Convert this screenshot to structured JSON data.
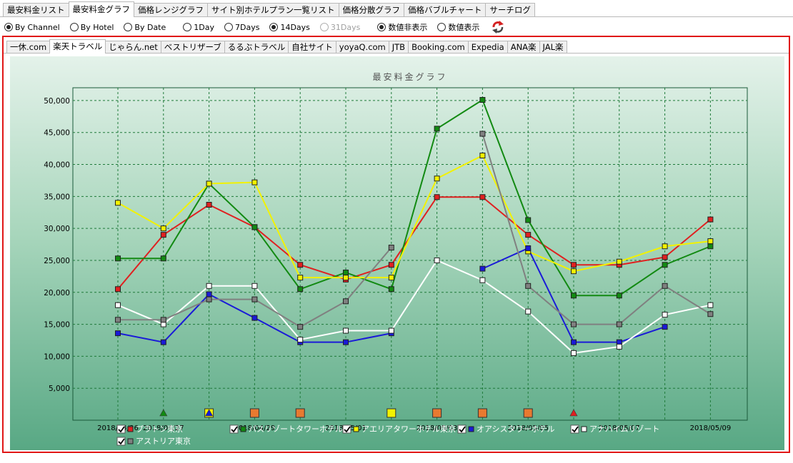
{
  "main_tabs": [
    {
      "label": "最安料金リスト",
      "active": false
    },
    {
      "label": "最安料金グラフ",
      "active": true
    },
    {
      "label": "価格レンジグラフ",
      "active": false
    },
    {
      "label": "サイト別ホテルプラン一覧リスト",
      "active": false
    },
    {
      "label": "価格分散グラフ",
      "active": false
    },
    {
      "label": "価格バブルチャート",
      "active": false
    },
    {
      "label": "サーチログ",
      "active": false
    }
  ],
  "options": {
    "group_by": [
      {
        "label": "By Channel",
        "checked": true
      },
      {
        "label": "By Hotel",
        "checked": false
      },
      {
        "label": "By Date",
        "checked": false
      }
    ],
    "period": [
      {
        "label": "1Day",
        "checked": false,
        "disabled": false
      },
      {
        "label": "7Days",
        "checked": false,
        "disabled": false
      },
      {
        "label": "14Days",
        "checked": true,
        "disabled": false
      },
      {
        "label": "31Days",
        "checked": false,
        "disabled": true
      }
    ],
    "value_display": [
      {
        "label": "数値非表示",
        "checked": true
      },
      {
        "label": "数値表示",
        "checked": false
      }
    ],
    "refresh_icon": "refresh-icon"
  },
  "channel_tabs": [
    {
      "label": "一休.com",
      "active": false
    },
    {
      "label": "楽天トラベル",
      "active": true
    },
    {
      "label": "じゃらん.net",
      "active": false
    },
    {
      "label": "ベストリザーブ",
      "active": false
    },
    {
      "label": "るるぶトラベル",
      "active": false
    },
    {
      "label": "自社サイト",
      "active": false
    },
    {
      "label": "yoyaQ.com",
      "active": false
    },
    {
      "label": "JTB",
      "active": false
    },
    {
      "label": "Booking.com",
      "active": false
    },
    {
      "label": "Expedia",
      "active": false
    },
    {
      "label": "ANA楽",
      "active": false
    },
    {
      "label": "JAL楽",
      "active": false
    }
  ],
  "chart_data": {
    "type": "line",
    "title": "最安料金グラフ",
    "xlabel": "",
    "ylabel": "",
    "ylim": [
      0,
      52000
    ],
    "yticks": [
      5000,
      10000,
      15000,
      20000,
      25000,
      30000,
      35000,
      40000,
      45000,
      50000
    ],
    "ytick_labels": [
      "5,000",
      "10,000",
      "15,000",
      "20,000",
      "25,000",
      "30,000",
      "35,000",
      "40,000",
      "45,000",
      "50,000"
    ],
    "x": [
      "2018/04/26",
      "2018/04/27",
      "2018/04/28",
      "2018/04/29",
      "2018/04/30",
      "2018/05/01",
      "2018/05/02",
      "2018/05/03",
      "2018/05/04",
      "2018/05/05",
      "2018/05/06",
      "2018/05/07",
      "2018/05/08",
      "2018/05/09"
    ],
    "xtick_labels": [
      "2018/04/26",
      "2018/04/27",
      "2018/04/29",
      "2018/05/01",
      "2018/05/03",
      "2018/05/05",
      "2018/05/07",
      "2018/05/09"
    ],
    "grid": true,
    "legend_position": "bottom",
    "series": [
      {
        "name": "プラトン東京",
        "color": "#e02020",
        "checked": true,
        "values": [
          20500,
          29000,
          33700,
          30200,
          24300,
          22000,
          24300,
          34900,
          34900,
          29000,
          24300,
          24300,
          25500,
          31400
        ]
      },
      {
        "name": "パスリゾートタワーホテル",
        "color": "#128a12",
        "checked": true,
        "values": [
          25300,
          25300,
          37000,
          30200,
          20500,
          23100,
          20500,
          45600,
          50100,
          31300,
          19500,
          19500,
          24300,
          27200
        ]
      },
      {
        "name": "アエリアタワーホテル東京",
        "color": "#f2f200",
        "checked": true,
        "values": [
          34000,
          30000,
          37000,
          37200,
          22300,
          22300,
          22300,
          37800,
          41400,
          26400,
          23300,
          24800,
          27200,
          28000
        ]
      },
      {
        "name": "オアシスタワーホテル",
        "color": "#1a1ad8",
        "checked": true,
        "values": [
          13600,
          12200,
          19700,
          16000,
          12200,
          12200,
          13600,
          null,
          23700,
          26900,
          12200,
          12200,
          14600,
          null
        ]
      },
      {
        "name": "アナハイムリゾート",
        "color": "#ffffff",
        "checked": true,
        "values": [
          18000,
          15000,
          21000,
          21000,
          12600,
          14000,
          14000,
          25000,
          21900,
          17000,
          10500,
          11500,
          16500,
          18000
        ]
      },
      {
        "name": "アストリア東京",
        "color": "#808080",
        "checked": true,
        "values": [
          15700,
          15700,
          18900,
          18900,
          14600,
          18600,
          27000,
          null,
          44800,
          21000,
          15000,
          15000,
          21000,
          16600
        ]
      }
    ],
    "markers": [
      {
        "x": "2018/04/27",
        "kind": "triangle",
        "color": "#128a12"
      },
      {
        "x": "2018/04/28",
        "kind": "square",
        "color": "#f2f200"
      },
      {
        "x": "2018/04/28",
        "kind": "triangle",
        "color": "#1a1ad8"
      },
      {
        "x": "2018/04/29",
        "kind": "square",
        "color": "#e87a30"
      },
      {
        "x": "2018/04/30",
        "kind": "square",
        "color": "#e87a30"
      },
      {
        "x": "2018/05/02",
        "kind": "square",
        "color": "#f2f200"
      },
      {
        "x": "2018/05/03",
        "kind": "square",
        "color": "#e87a30"
      },
      {
        "x": "2018/05/04",
        "kind": "square",
        "color": "#e87a30"
      },
      {
        "x": "2018/05/05",
        "kind": "square",
        "color": "#e87a30"
      },
      {
        "x": "2018/05/06",
        "kind": "triangle",
        "color": "#e02020"
      }
    ]
  }
}
